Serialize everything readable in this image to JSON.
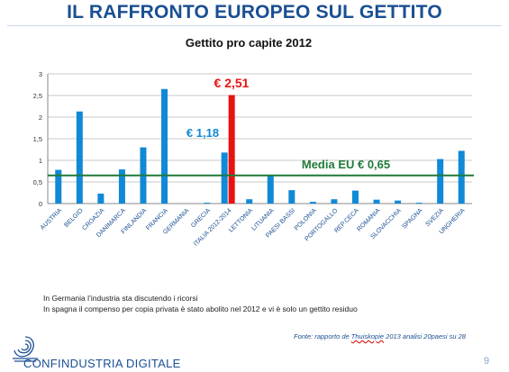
{
  "header": {
    "title": "IL RAFFRONTO EUROPEO SUL GETTITO"
  },
  "chart_data": {
    "type": "bar",
    "title": "Gettito pro capite 2012",
    "categories": [
      "AUSTRIA",
      "BELGIO",
      "CROAZIA",
      "DANIMARCA",
      "FINLANDIA",
      "FRANCIA",
      "GERMANIA",
      "GRECIA",
      "ITALIA 2012-2014",
      "LETTONIA",
      "LITUANIA",
      "PAESI BASSI",
      "POLONIA",
      "PORTOGALLO",
      "REP.CECA",
      "ROMANIA",
      "SLOVACCHIA",
      "SPAGNA",
      "SVEZIA",
      "UNGHERIA"
    ],
    "series": [
      {
        "values": [
          0.78,
          2.13,
          0.23,
          0.79,
          1.3,
          2.65,
          0.0,
          0.02,
          1.18,
          0.1,
          0.66,
          0.31,
          0.04,
          0.1,
          0.3,
          0.09,
          0.07,
          0.02,
          1.03,
          1.22
        ]
      },
      {
        "values": [
          null,
          null,
          null,
          null,
          null,
          null,
          null,
          null,
          2.51,
          null,
          null,
          null,
          null,
          null,
          null,
          null,
          null,
          null,
          null,
          null
        ]
      }
    ],
    "ylim": [
      0,
      3
    ],
    "yticks": [
      "0",
      "0,5",
      "1",
      "1,5",
      "2",
      "2,5",
      "3"
    ],
    "grid": true,
    "reference_line": {
      "value": 0.65,
      "label": "Media  EU € 0,65"
    },
    "annotations": {
      "italy_before": "€ 1,18",
      "italy_after": "€ 2,51"
    },
    "colors": {
      "bars": "#1089d6",
      "highlight": "#e8120f",
      "reference": "#1f7a3a",
      "title": "#1a4f93"
    }
  },
  "notes": [
    "In Germania l’industria sta discutendo i ricorsi",
    "In spagna il compenso per copia privata è stato abolito nel 2012 e vi è solo un gettito residuo"
  ],
  "source": {
    "prefix": "Fonte: rapporto de ",
    "underlined": "Thuiskopie",
    "suffix": " 2013  analisi 20paesi su 28"
  },
  "footer": {
    "logo_text": "CONFINDUSTRIA DIGITALE",
    "page_number": "9"
  }
}
